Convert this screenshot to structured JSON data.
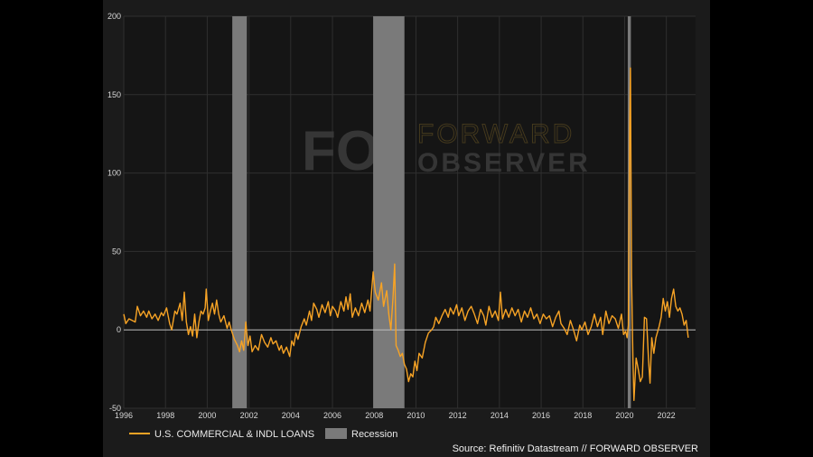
{
  "chart_data": {
    "type": "line",
    "title": "",
    "xlabel": "",
    "ylabel": "",
    "ylim": [
      -50,
      200
    ],
    "xlim": [
      1996,
      2023.4
    ],
    "y_ticks": [
      "200",
      "150",
      "100",
      "50",
      "0",
      "-50"
    ],
    "x_ticks": [
      "1996",
      "1998",
      "2000",
      "2002",
      "2004",
      "2006",
      "2008",
      "2010",
      "2012",
      "2014",
      "2016",
      "2018",
      "2020",
      "2022"
    ],
    "grid": true,
    "legend_position": "bottom-left",
    "series": [
      {
        "name": "U.S. COMMERCIAL & INDL LOANS",
        "color": "#f7a325",
        "points": [
          [
            1996.0,
            10
          ],
          [
            1996.1,
            4
          ],
          [
            1996.25,
            7
          ],
          [
            1996.4,
            6
          ],
          [
            1996.55,
            5
          ],
          [
            1996.65,
            15
          ],
          [
            1996.8,
            9
          ],
          [
            1996.95,
            12
          ],
          [
            1997.1,
            8
          ],
          [
            1997.2,
            12
          ],
          [
            1997.35,
            7
          ],
          [
            1997.5,
            10
          ],
          [
            1997.65,
            6
          ],
          [
            1997.8,
            11
          ],
          [
            1997.9,
            9
          ],
          [
            1998.05,
            14
          ],
          [
            1998.2,
            4
          ],
          [
            1998.3,
            0
          ],
          [
            1998.45,
            12
          ],
          [
            1998.55,
            10
          ],
          [
            1998.7,
            17
          ],
          [
            1998.8,
            6
          ],
          [
            1998.9,
            24
          ],
          [
            1999.0,
            5
          ],
          [
            1999.1,
            -3
          ],
          [
            1999.2,
            2
          ],
          [
            1999.3,
            -4
          ],
          [
            1999.4,
            10
          ],
          [
            1999.5,
            -5
          ],
          [
            1999.6,
            5
          ],
          [
            1999.7,
            12
          ],
          [
            1999.8,
            10
          ],
          [
            1999.9,
            14
          ],
          [
            1999.95,
            26
          ],
          [
            2000.05,
            6
          ],
          [
            2000.15,
            12
          ],
          [
            2000.25,
            17
          ],
          [
            2000.35,
            10
          ],
          [
            2000.45,
            19
          ],
          [
            2000.55,
            10
          ],
          [
            2000.65,
            5
          ],
          [
            2000.8,
            9
          ],
          [
            2000.95,
            1
          ],
          [
            2001.05,
            5
          ],
          [
            2001.15,
            0
          ],
          [
            2001.3,
            -6
          ],
          [
            2001.45,
            -10
          ],
          [
            2001.55,
            -14
          ],
          [
            2001.65,
            -7
          ],
          [
            2001.75,
            -13
          ],
          [
            2001.85,
            5
          ],
          [
            2001.95,
            -10
          ],
          [
            2002.05,
            -4
          ],
          [
            2002.15,
            -14
          ],
          [
            2002.3,
            -10
          ],
          [
            2002.45,
            -13
          ],
          [
            2002.6,
            -3
          ],
          [
            2002.75,
            -8
          ],
          [
            2002.9,
            -11
          ],
          [
            2003.05,
            -5
          ],
          [
            2003.15,
            -9
          ],
          [
            2003.3,
            -7
          ],
          [
            2003.45,
            -13
          ],
          [
            2003.55,
            -10
          ],
          [
            2003.65,
            -15
          ],
          [
            2003.8,
            -11
          ],
          [
            2003.95,
            -17
          ],
          [
            2004.05,
            -7
          ],
          [
            2004.15,
            -10
          ],
          [
            2004.25,
            -2
          ],
          [
            2004.35,
            -6
          ],
          [
            2004.5,
            2
          ],
          [
            2004.65,
            7
          ],
          [
            2004.75,
            3
          ],
          [
            2004.9,
            12
          ],
          [
            2005.0,
            6
          ],
          [
            2005.1,
            17
          ],
          [
            2005.25,
            13
          ],
          [
            2005.35,
            8
          ],
          [
            2005.5,
            16
          ],
          [
            2005.65,
            11
          ],
          [
            2005.8,
            18
          ],
          [
            2005.9,
            9
          ],
          [
            2006.0,
            15
          ],
          [
            2006.15,
            12
          ],
          [
            2006.25,
            8
          ],
          [
            2006.4,
            18
          ],
          [
            2006.55,
            12
          ],
          [
            2006.65,
            21
          ],
          [
            2006.75,
            13
          ],
          [
            2006.85,
            23
          ],
          [
            2006.95,
            8
          ],
          [
            2007.1,
            14
          ],
          [
            2007.25,
            9
          ],
          [
            2007.4,
            17
          ],
          [
            2007.55,
            11
          ],
          [
            2007.7,
            19
          ],
          [
            2007.8,
            12
          ],
          [
            2007.95,
            37
          ],
          [
            2008.05,
            24
          ],
          [
            2008.2,
            19
          ],
          [
            2008.35,
            30
          ],
          [
            2008.45,
            15
          ],
          [
            2008.6,
            25
          ],
          [
            2008.7,
            10
          ],
          [
            2008.8,
            0
          ],
          [
            2008.9,
            20
          ],
          [
            2008.98,
            42
          ],
          [
            2009.05,
            -10
          ],
          [
            2009.15,
            -13
          ],
          [
            2009.25,
            -17
          ],
          [
            2009.35,
            -15
          ],
          [
            2009.45,
            -22
          ],
          [
            2009.55,
            -25
          ],
          [
            2009.65,
            -33
          ],
          [
            2009.75,
            -28
          ],
          [
            2009.85,
            -30
          ],
          [
            2009.95,
            -20
          ],
          [
            2010.05,
            -26
          ],
          [
            2010.15,
            -15
          ],
          [
            2010.3,
            -18
          ],
          [
            2010.45,
            -8
          ],
          [
            2010.6,
            -2
          ],
          [
            2010.75,
            0
          ],
          [
            2010.85,
            2
          ],
          [
            2010.95,
            8
          ],
          [
            2011.1,
            4
          ],
          [
            2011.25,
            9
          ],
          [
            2011.4,
            13
          ],
          [
            2011.55,
            8
          ],
          [
            2011.65,
            14
          ],
          [
            2011.8,
            10
          ],
          [
            2011.95,
            16
          ],
          [
            2012.05,
            9
          ],
          [
            2012.2,
            14
          ],
          [
            2012.35,
            6
          ],
          [
            2012.5,
            12
          ],
          [
            2012.65,
            15
          ],
          [
            2012.8,
            10
          ],
          [
            2012.95,
            4
          ],
          [
            2013.1,
            13
          ],
          [
            2013.25,
            9
          ],
          [
            2013.35,
            3
          ],
          [
            2013.5,
            15
          ],
          [
            2013.65,
            8
          ],
          [
            2013.8,
            12
          ],
          [
            2013.95,
            6
          ],
          [
            2014.05,
            24
          ],
          [
            2014.15,
            7
          ],
          [
            2014.3,
            13
          ],
          [
            2014.45,
            8
          ],
          [
            2014.6,
            14
          ],
          [
            2014.75,
            9
          ],
          [
            2014.9,
            13
          ],
          [
            2015.05,
            5
          ],
          [
            2015.2,
            12
          ],
          [
            2015.35,
            8
          ],
          [
            2015.5,
            14
          ],
          [
            2015.65,
            7
          ],
          [
            2015.8,
            10
          ],
          [
            2015.95,
            4
          ],
          [
            2016.1,
            10
          ],
          [
            2016.25,
            7
          ],
          [
            2016.4,
            9
          ],
          [
            2016.55,
            2
          ],
          [
            2016.7,
            8
          ],
          [
            2016.85,
            12
          ],
          [
            2016.95,
            4
          ],
          [
            2017.1,
            1
          ],
          [
            2017.25,
            -3
          ],
          [
            2017.4,
            6
          ],
          [
            2017.55,
            0
          ],
          [
            2017.7,
            -7
          ],
          [
            2017.85,
            3
          ],
          [
            2017.95,
            0
          ],
          [
            2018.1,
            5
          ],
          [
            2018.25,
            -3
          ],
          [
            2018.4,
            2
          ],
          [
            2018.55,
            10
          ],
          [
            2018.7,
            2
          ],
          [
            2018.85,
            8
          ],
          [
            2018.95,
            -3
          ],
          [
            2019.1,
            12
          ],
          [
            2019.25,
            4
          ],
          [
            2019.4,
            9
          ],
          [
            2019.55,
            7
          ],
          [
            2019.7,
            1
          ],
          [
            2019.85,
            10
          ],
          [
            2019.95,
            -3
          ],
          [
            2020.05,
            -1
          ],
          [
            2020.12,
            -5
          ],
          [
            2020.18,
            3
          ],
          [
            2020.24,
            130
          ],
          [
            2020.28,
            167
          ],
          [
            2020.33,
            35
          ],
          [
            2020.4,
            -20
          ],
          [
            2020.45,
            -45
          ],
          [
            2020.55,
            -18
          ],
          [
            2020.65,
            -25
          ],
          [
            2020.75,
            -33
          ],
          [
            2020.85,
            -30
          ],
          [
            2020.95,
            8
          ],
          [
            2021.05,
            7
          ],
          [
            2021.15,
            -20
          ],
          [
            2021.22,
            -34
          ],
          [
            2021.3,
            -5
          ],
          [
            2021.4,
            -15
          ],
          [
            2021.5,
            -5
          ],
          [
            2021.65,
            2
          ],
          [
            2021.75,
            8
          ],
          [
            2021.85,
            20
          ],
          [
            2021.95,
            12
          ],
          [
            2022.05,
            18
          ],
          [
            2022.15,
            8
          ],
          [
            2022.25,
            20
          ],
          [
            2022.35,
            26
          ],
          [
            2022.45,
            15
          ],
          [
            2022.55,
            12
          ],
          [
            2022.65,
            14
          ],
          [
            2022.75,
            10
          ],
          [
            2022.85,
            3
          ],
          [
            2022.95,
            6
          ],
          [
            2023.05,
            -5
          ]
        ]
      }
    ],
    "recessions": [
      {
        "start": 2001.2,
        "end": 2001.9
      },
      {
        "start": 2007.95,
        "end": 2009.45
      },
      {
        "start": 2020.15,
        "end": 2020.3
      }
    ],
    "legend": {
      "line_label": "U.S. COMMERCIAL & INDL LOANS",
      "recession_label": "Recession"
    },
    "source": "Source: Refinitiv Datastream // FORWARD OBSERVER",
    "colors": {
      "line": "#f7a325",
      "recession": "#7a7a7a",
      "background": "#1b1b1b",
      "plot_background": "#151515",
      "grid": "#2f2f2f",
      "zero_line": "#bdbdbd"
    }
  },
  "watermark": {
    "logo": "FO",
    "line1": "FORWARD",
    "line2": "OBSERVER"
  }
}
